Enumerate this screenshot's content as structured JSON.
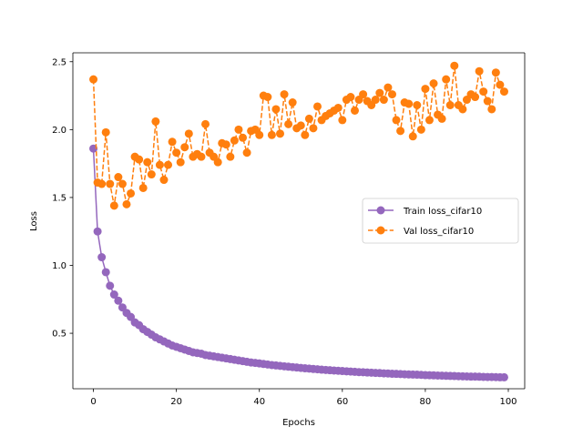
{
  "chart_data": {
    "type": "line",
    "title": "",
    "xlabel": "Epochs",
    "ylabel": "Loss",
    "xlim": [
      -4.95,
      103.95
    ],
    "ylim": [
      0.0915,
      2.5655
    ],
    "xticks": [
      0,
      20,
      40,
      60,
      80,
      100
    ],
    "yticks": [
      0.5,
      1.0,
      1.5,
      2.0,
      2.5
    ],
    "xtick_labels": [
      "0",
      "20",
      "40",
      "60",
      "80",
      "100"
    ],
    "ytick_labels": [
      "0.5",
      "1.0",
      "1.5",
      "2.0",
      "2.5"
    ],
    "grid": false,
    "legend_position": "center-right",
    "series": [
      {
        "name": "Train loss_cifar10",
        "color": "#9467bd",
        "linestyle": "solid",
        "marker": "circle",
        "values": [
          1.86,
          1.25,
          1.06,
          0.95,
          0.85,
          0.785,
          0.74,
          0.69,
          0.65,
          0.62,
          0.58,
          0.56,
          0.53,
          0.51,
          0.49,
          0.47,
          0.455,
          0.44,
          0.425,
          0.41,
          0.4,
          0.39,
          0.38,
          0.37,
          0.36,
          0.355,
          0.35,
          0.34,
          0.335,
          0.33,
          0.325,
          0.32,
          0.315,
          0.31,
          0.305,
          0.3,
          0.295,
          0.29,
          0.285,
          0.282,
          0.278,
          0.274,
          0.27,
          0.266,
          0.263,
          0.26,
          0.257,
          0.254,
          0.251,
          0.248,
          0.245,
          0.242,
          0.24,
          0.237,
          0.235,
          0.232,
          0.23,
          0.228,
          0.226,
          0.224,
          0.222,
          0.22,
          0.218,
          0.216,
          0.214,
          0.213,
          0.211,
          0.21,
          0.208,
          0.207,
          0.205,
          0.204,
          0.202,
          0.201,
          0.2,
          0.198,
          0.197,
          0.196,
          0.195,
          0.194,
          0.192,
          0.191,
          0.19,
          0.189,
          0.188,
          0.187,
          0.186,
          0.185,
          0.184,
          0.183,
          0.182,
          0.181,
          0.181,
          0.18,
          0.179,
          0.178,
          0.178,
          0.177,
          0.176,
          0.176
        ]
      },
      {
        "name": "Val loss_cifar10",
        "color": "#ff7f0e",
        "linestyle": "dashed",
        "marker": "circle",
        "values": [
          2.37,
          1.61,
          1.6,
          1.98,
          1.6,
          1.44,
          1.65,
          1.6,
          1.45,
          1.53,
          1.8,
          1.78,
          1.57,
          1.76,
          1.67,
          2.06,
          1.74,
          1.63,
          1.74,
          1.91,
          1.83,
          1.76,
          1.87,
          1.97,
          1.8,
          1.82,
          1.8,
          2.04,
          1.83,
          1.8,
          1.76,
          1.9,
          1.89,
          1.8,
          1.92,
          2.0,
          1.94,
          1.83,
          1.99,
          2.0,
          1.96,
          2.25,
          2.24,
          1.96,
          2.15,
          1.97,
          2.26,
          2.04,
          2.2,
          2.01,
          2.03,
          1.96,
          2.08,
          2.01,
          2.17,
          2.07,
          2.1,
          2.12,
          2.14,
          2.16,
          2.07,
          2.22,
          2.24,
          2.14,
          2.22,
          2.26,
          2.21,
          2.18,
          2.22,
          2.27,
          2.22,
          2.31,
          2.26,
          2.07,
          1.99,
          2.2,
          2.19,
          1.95,
          2.18,
          2.0,
          2.3,
          2.07,
          2.34,
          2.11,
          2.08,
          2.37,
          2.18,
          2.47,
          2.18,
          2.15,
          2.22,
          2.26,
          2.24,
          2.43,
          2.28,
          2.21,
          2.15,
          2.42,
          2.33,
          2.28
        ]
      }
    ]
  }
}
